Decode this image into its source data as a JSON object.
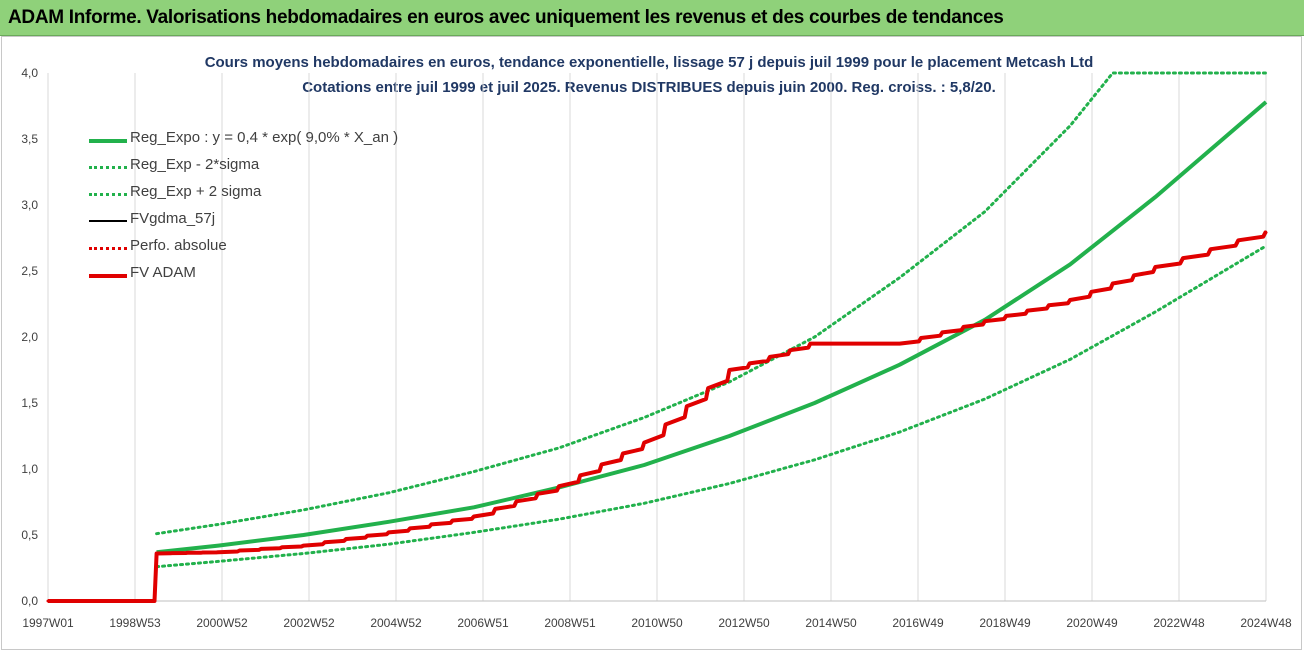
{
  "banner": {
    "title": "ADAM Informe. Valorisations hebdomadaires en euros avec uniquement les revenus et des courbes de tendances"
  },
  "chart_data": {
    "type": "line",
    "title": "Cours moyens hebdomadaires en euros, tendance exponentielle, lissage 57 j depuis juil 1999 pour le placement Metcash Ltd",
    "subtitle": "Cotations entre juil 1999 et juil 2025. Revenus DISTRIBUES depuis juin 2000. Reg. croiss. : 5,8/20.",
    "xlabel": "",
    "ylabel": "",
    "x_ticks": [
      "1997W01",
      "1998W53",
      "2000W52",
      "2002W52",
      "2004W52",
      "2006W51",
      "2008W51",
      "2010W50",
      "2012W50",
      "2014W50",
      "2016W49",
      "2018W49",
      "2020W49",
      "2022W48",
      "2024W48"
    ],
    "y_ticks": [
      "0,0",
      "0,5",
      "1,0",
      "1,5",
      "2,0",
      "2,5",
      "3,0",
      "3,5",
      "4,0"
    ],
    "xlim": [
      1997.0,
      2025.6
    ],
    "ylim": [
      0,
      4.0
    ],
    "grid": "vertical",
    "legend_position": "top-left",
    "series": [
      {
        "name": "Reg_Expo : y = 0,4 * exp( 9,0% *  X_an )",
        "color": "#22b14c",
        "style": "solid-thick",
        "x": [
          1999.55,
          2001,
          2003,
          2005,
          2007,
          2009,
          2011,
          2013,
          2015,
          2017,
          2019,
          2021,
          2023,
          2025.6
        ],
        "values": [
          0.37,
          0.42,
          0.5,
          0.6,
          0.71,
          0.86,
          1.03,
          1.25,
          1.5,
          1.79,
          2.13,
          2.55,
          3.06,
          3.78
        ]
      },
      {
        "name": "Reg_Exp - 2*sigma",
        "color": "#22b14c",
        "style": "dotted",
        "x": [
          1999.55,
          2001,
          2003,
          2005,
          2007,
          2009,
          2011,
          2013,
          2015,
          2017,
          2019,
          2021,
          2023,
          2025.6
        ],
        "values": [
          0.26,
          0.3,
          0.36,
          0.43,
          0.52,
          0.62,
          0.74,
          0.89,
          1.07,
          1.28,
          1.53,
          1.83,
          2.19,
          2.69
        ]
      },
      {
        "name": "Reg_Exp + 2 sigma",
        "color": "#22b14c",
        "style": "dotted",
        "x": [
          1999.55,
          2001,
          2003,
          2005,
          2007,
          2009,
          2011,
          2013,
          2015,
          2017,
          2019,
          2021,
          2022.0,
          2025.6
        ],
        "values": [
          0.51,
          0.58,
          0.69,
          0.82,
          0.98,
          1.16,
          1.39,
          1.66,
          2.0,
          2.45,
          2.95,
          3.6,
          4.0,
          4.0
        ]
      },
      {
        "name": "FVgdma_57j",
        "color": "#000000",
        "style": "solid",
        "x": [
          1997.0,
          1999.5,
          1999.55,
          2001,
          2003,
          2005,
          2007,
          2009,
          2011,
          2013,
          2014.9,
          2017,
          2019,
          2021,
          2023,
          2025.6
        ],
        "values": [
          0.0,
          0.0,
          0.36,
          0.37,
          0.42,
          0.52,
          0.64,
          0.87,
          1.2,
          1.75,
          1.95,
          1.95,
          2.12,
          2.28,
          2.53,
          2.8
        ]
      },
      {
        "name": "Perfo. absolue",
        "color": "#e00000",
        "style": "dotted",
        "x": [
          1997.0,
          1999.5,
          1999.55,
          2001,
          2003,
          2005,
          2007,
          2009,
          2011,
          2013,
          2014.9,
          2017,
          2019,
          2021,
          2023,
          2025.6
        ],
        "values": [
          0.0,
          0.0,
          0.36,
          0.37,
          0.42,
          0.52,
          0.64,
          0.87,
          1.2,
          1.75,
          1.95,
          1.95,
          2.12,
          2.28,
          2.53,
          2.8
        ]
      },
      {
        "name": "FV ADAM",
        "color": "#e00000",
        "style": "solid-thick",
        "x": [
          1997.0,
          1999.5,
          1999.55,
          2001,
          2003,
          2005,
          2007,
          2009,
          2011,
          2013,
          2014.9,
          2017,
          2019,
          2021,
          2023,
          2025.6
        ],
        "values": [
          0.0,
          0.0,
          0.36,
          0.37,
          0.42,
          0.52,
          0.64,
          0.87,
          1.2,
          1.75,
          1.95,
          1.95,
          2.12,
          2.28,
          2.53,
          2.8
        ]
      }
    ]
  }
}
